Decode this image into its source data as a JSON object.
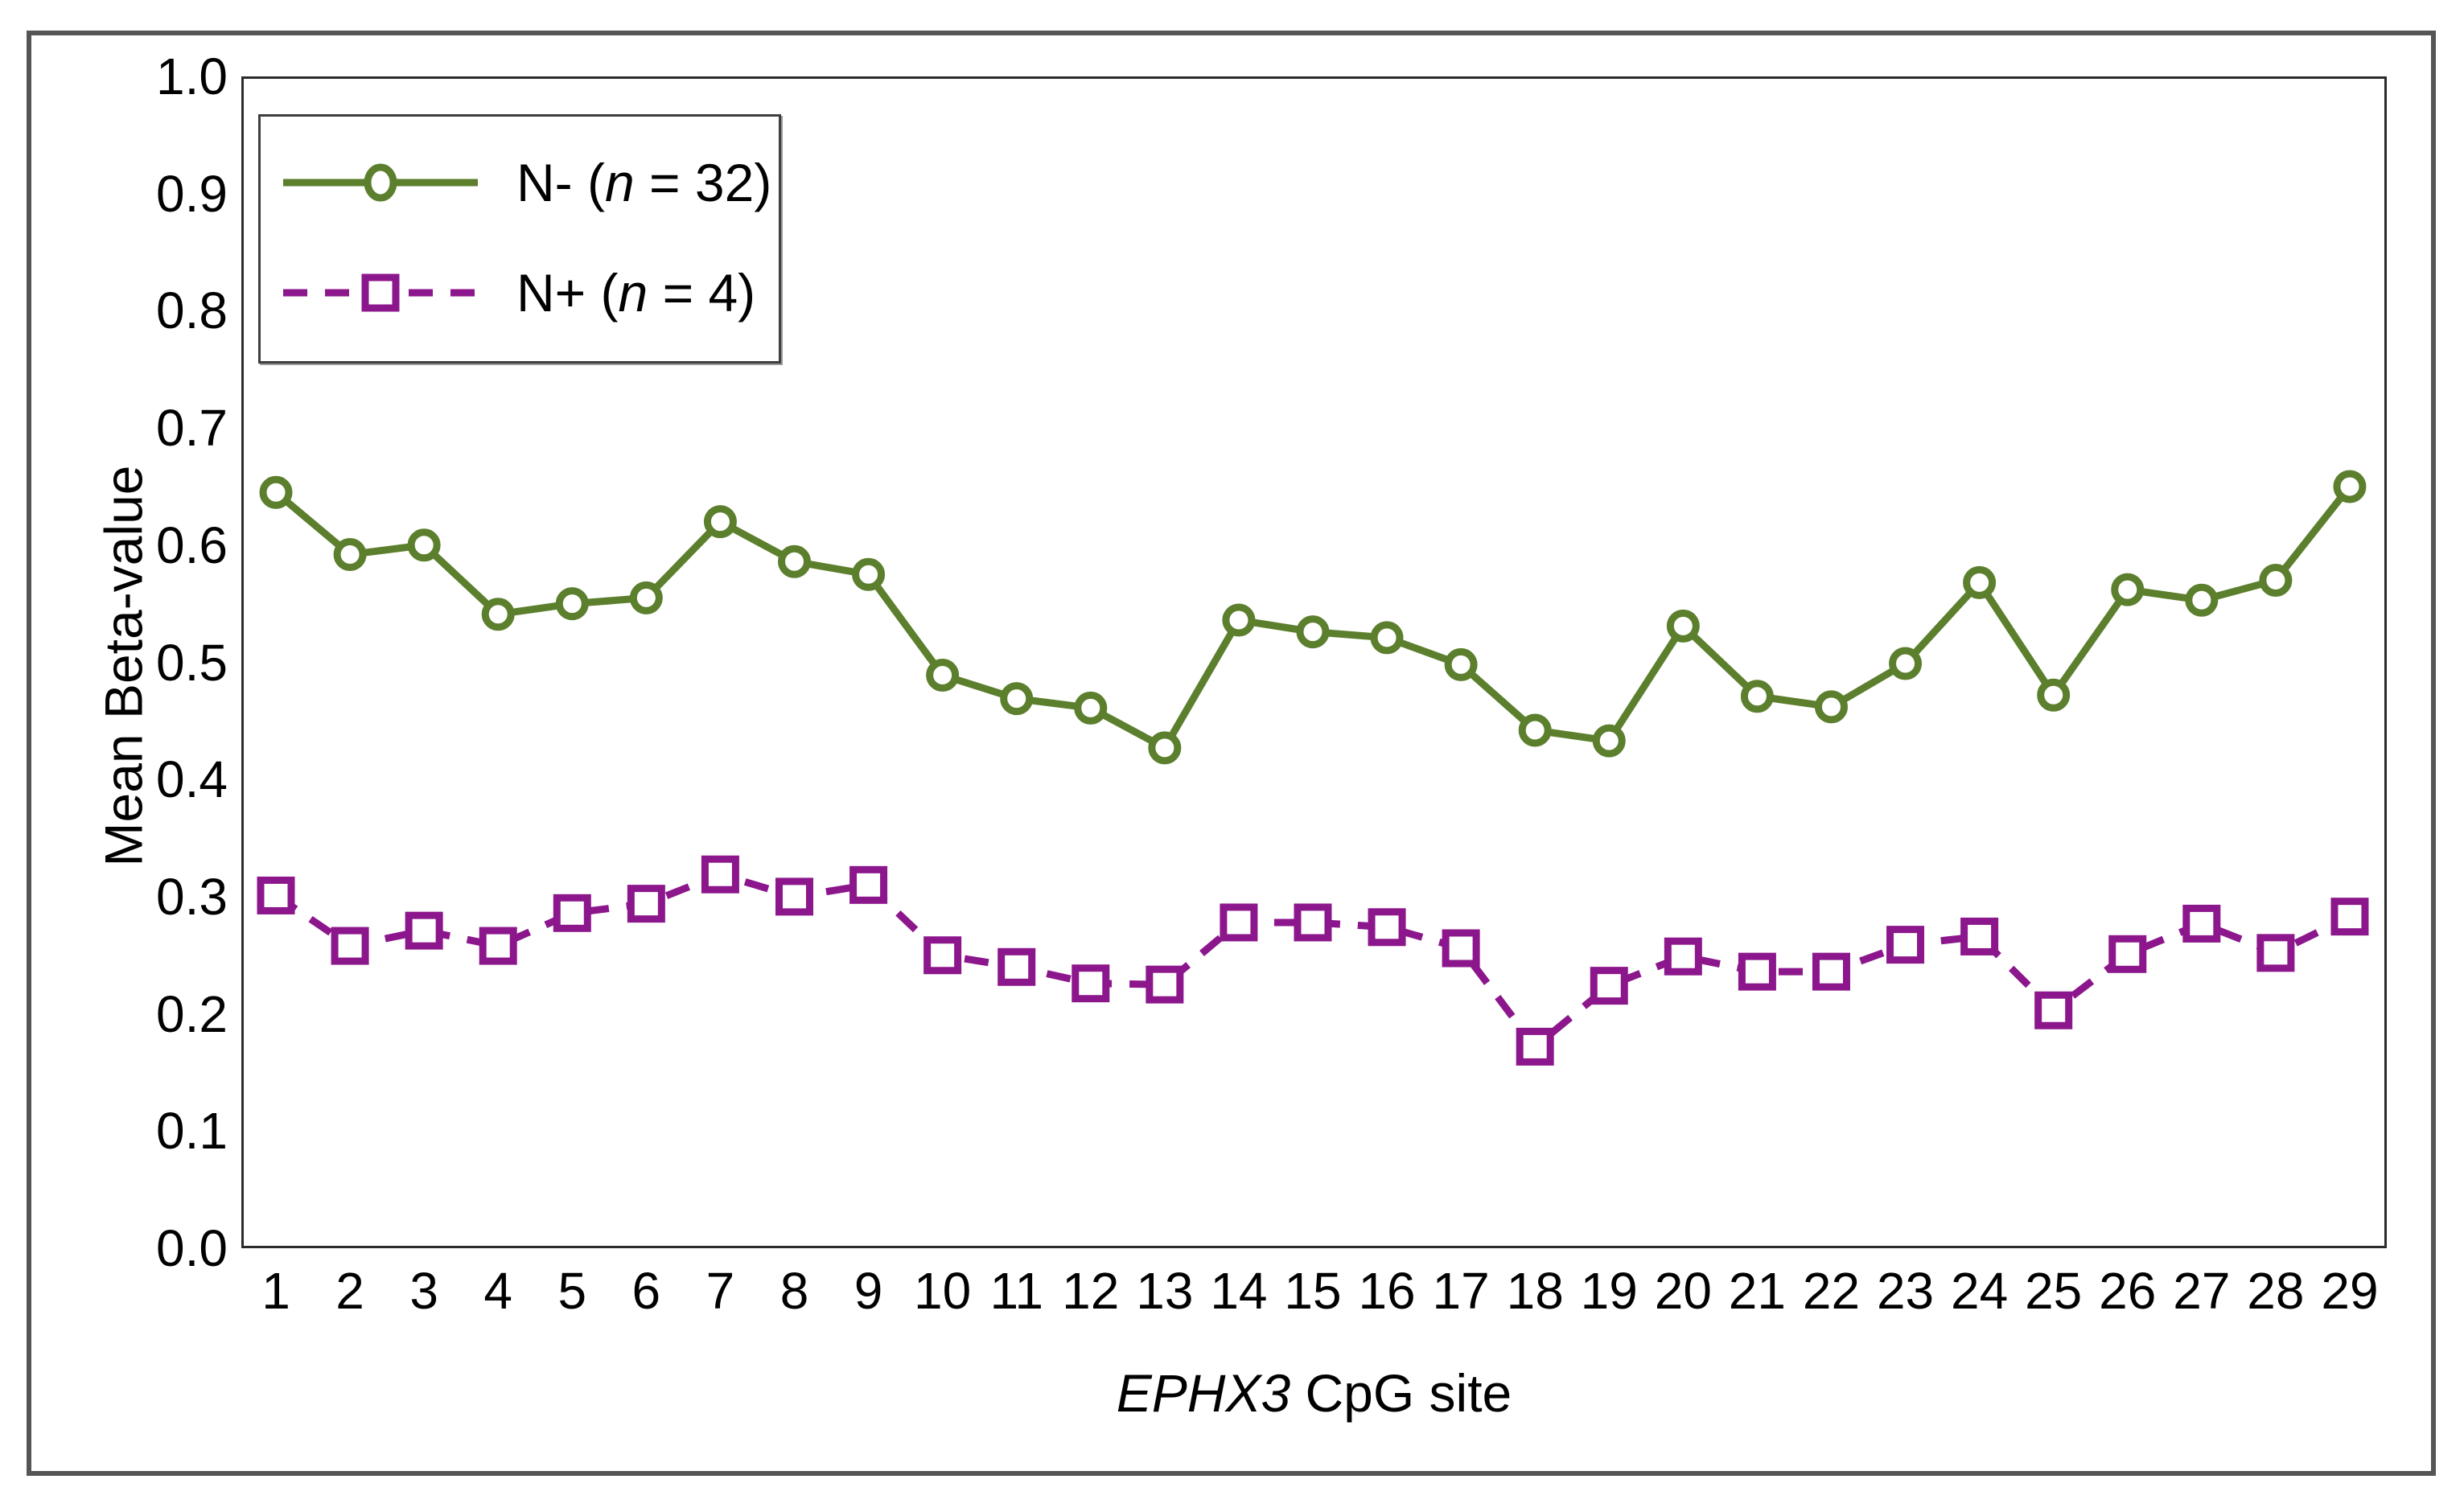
{
  "axes": {
    "y_title": "Mean Beta-value",
    "x_title_italic": "EPHX3",
    "x_title_rest": " CpG site",
    "y_tick_labels": [
      "0.0",
      "0.1",
      "0.2",
      "0.3",
      "0.4",
      "0.5",
      "0.6",
      "0.7",
      "0.8",
      "0.9",
      "1.0"
    ]
  },
  "legend": {
    "items": [
      {
        "prefix": "N- (",
        "italic": "n",
        "suffix": " = 32)"
      },
      {
        "prefix": "N+ (",
        "italic": "n",
        "suffix": " = 4)"
      }
    ]
  },
  "colors": {
    "n_minus_green": "#5c7f2e",
    "n_plus_purple": "#8c168c",
    "outer_frame_gray": "#555555",
    "plot_spine": "#2b2b2b",
    "text": "#000000",
    "marker_fill": "#ffffff"
  },
  "chart_data": {
    "type": "line",
    "title": "",
    "xlabel": "EPHX3 CpG site",
    "ylabel": "Mean Beta-value",
    "x": [
      1,
      2,
      3,
      4,
      5,
      6,
      7,
      8,
      9,
      10,
      11,
      12,
      13,
      14,
      15,
      16,
      17,
      18,
      19,
      20,
      21,
      22,
      23,
      24,
      25,
      26,
      27,
      28,
      29
    ],
    "ylim": [
      0.0,
      1.0
    ],
    "ytick_step": 0.1,
    "grid": false,
    "legend_position": "top-left",
    "series": [
      {
        "name": "N- (n = 32)",
        "marker": "circle",
        "line_style": "solid",
        "color": "#5c7f2e",
        "values": [
          0.645,
          0.592,
          0.6,
          0.541,
          0.55,
          0.555,
          0.62,
          0.586,
          0.575,
          0.489,
          0.469,
          0.461,
          0.427,
          0.536,
          0.526,
          0.521,
          0.498,
          0.442,
          0.433,
          0.531,
          0.471,
          0.462,
          0.499,
          0.568,
          0.472,
          0.562,
          0.553,
          0.57,
          0.65
        ]
      },
      {
        "name": "N+ (n = 4)",
        "marker": "square",
        "line_style": "dashed",
        "color": "#8c168c",
        "values": [
          0.301,
          0.258,
          0.271,
          0.258,
          0.286,
          0.294,
          0.319,
          0.3,
          0.31,
          0.25,
          0.24,
          0.226,
          0.225,
          0.278,
          0.278,
          0.274,
          0.256,
          0.172,
          0.224,
          0.249,
          0.236,
          0.236,
          0.259,
          0.266,
          0.203,
          0.251,
          0.277,
          0.252,
          0.283
        ]
      }
    ]
  }
}
